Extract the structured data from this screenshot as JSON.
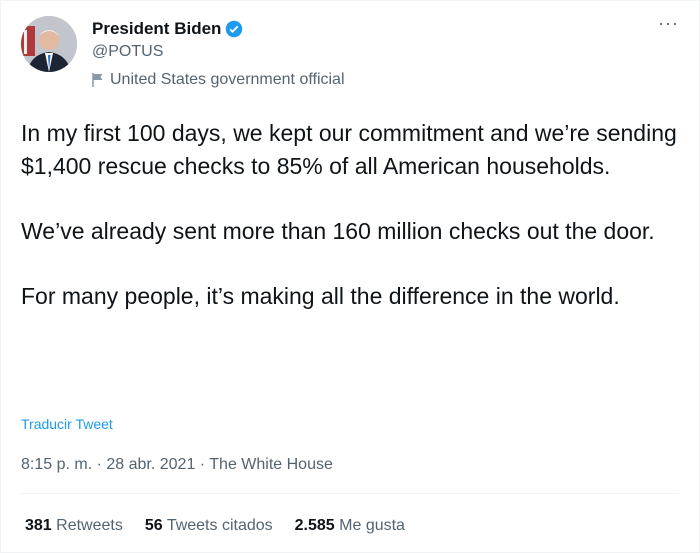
{
  "author": {
    "name": "President Biden",
    "handle": "@POTUS",
    "label": "United States government official",
    "verified": true
  },
  "tweet": {
    "paragraphs": [
      "In my first 100 days, we kept our commitment and we’re sending $1,400 rescue checks to 85% of all American households.",
      "We’ve already sent more than 160 million checks out the door.",
      "For many people, it’s making all the difference in the world."
    ],
    "translate_label": "Traducir Tweet",
    "timestamp": "8:15 p. m. · 28 abr. 2021 · The White House"
  },
  "stats": [
    {
      "count": "381",
      "label": "Retweets"
    },
    {
      "count": "56",
      "label": "Tweets citados"
    },
    {
      "count": "2.585",
      "label": "Me gusta"
    }
  ],
  "colors": {
    "accent": "#1d9bf0",
    "text": "#0f1419",
    "secondary": "#536471"
  }
}
